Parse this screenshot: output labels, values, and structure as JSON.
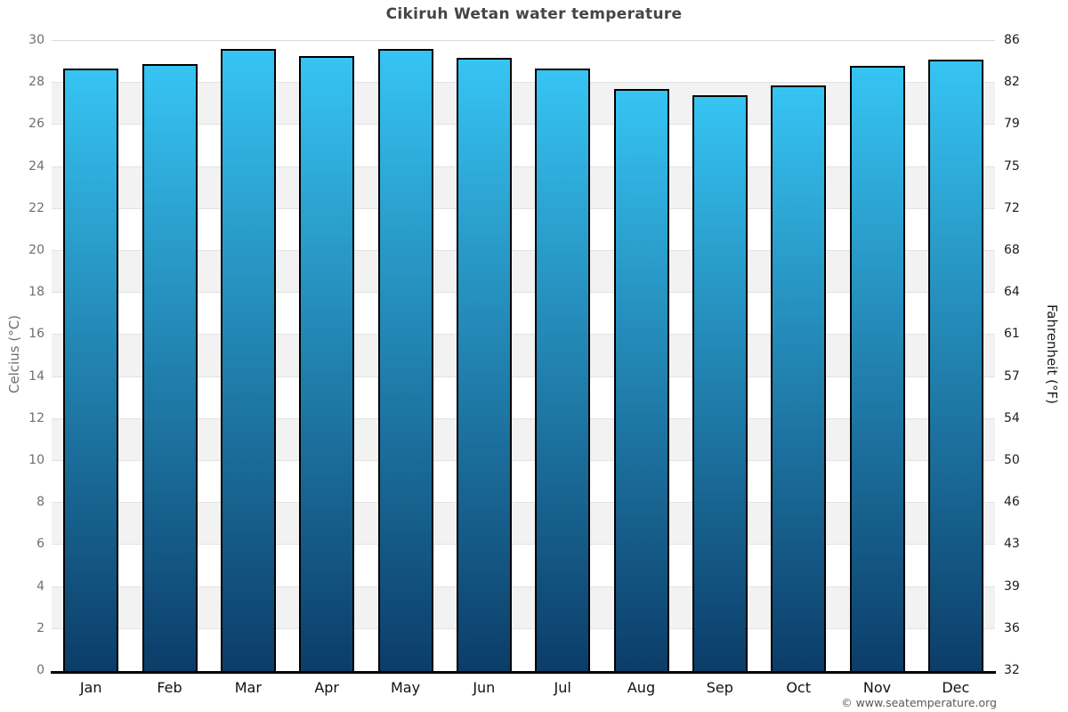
{
  "title": "Cikiruh Wetan water temperature",
  "footer": {
    "copyright": "© www.seatemperature.org"
  },
  "chart_data": {
    "type": "bar",
    "title": "Cikiruh Wetan water temperature",
    "categories": [
      "Jan",
      "Feb",
      "Mar",
      "Apr",
      "May",
      "Jun",
      "Jul",
      "Aug",
      "Sep",
      "Oct",
      "Nov",
      "Dec"
    ],
    "values": [
      28.7,
      28.9,
      29.6,
      29.3,
      29.6,
      29.2,
      28.7,
      27.7,
      27.4,
      27.9,
      28.8,
      29.1
    ],
    "series_name": "Water temperature (°C)",
    "xlabel": "",
    "ylabel_left": "Celcius (°C)",
    "ylabel_right": "Fahrenheit (°F)",
    "ylim_celsius": [
      0,
      30
    ],
    "ylim_fahrenheit": [
      32,
      86
    ],
    "yticks_celsius": [
      30,
      28,
      26,
      24,
      22,
      20,
      18,
      16,
      14,
      12,
      10,
      8,
      6,
      4,
      2,
      0
    ],
    "yticks_fahrenheit": [
      86,
      82,
      79,
      75,
      72,
      68,
      64,
      61,
      57,
      54,
      50,
      46,
      43,
      39,
      36,
      32
    ],
    "grid": "on",
    "legend": "none",
    "band_interval_celsius": 2,
    "colors": {
      "bar_gradient_top": "#36c4f3",
      "bar_gradient_bottom": "#0c3d69",
      "bar_border": "#000000",
      "band_gray": "#f2f2f2",
      "gridline": "#e2e2e2",
      "title_text": "#454545",
      "left_axis_text": "#6f6f6f",
      "right_axis_text": "#1d1d1d",
      "month_text": "#111111",
      "copyright_text": "#595959"
    }
  }
}
